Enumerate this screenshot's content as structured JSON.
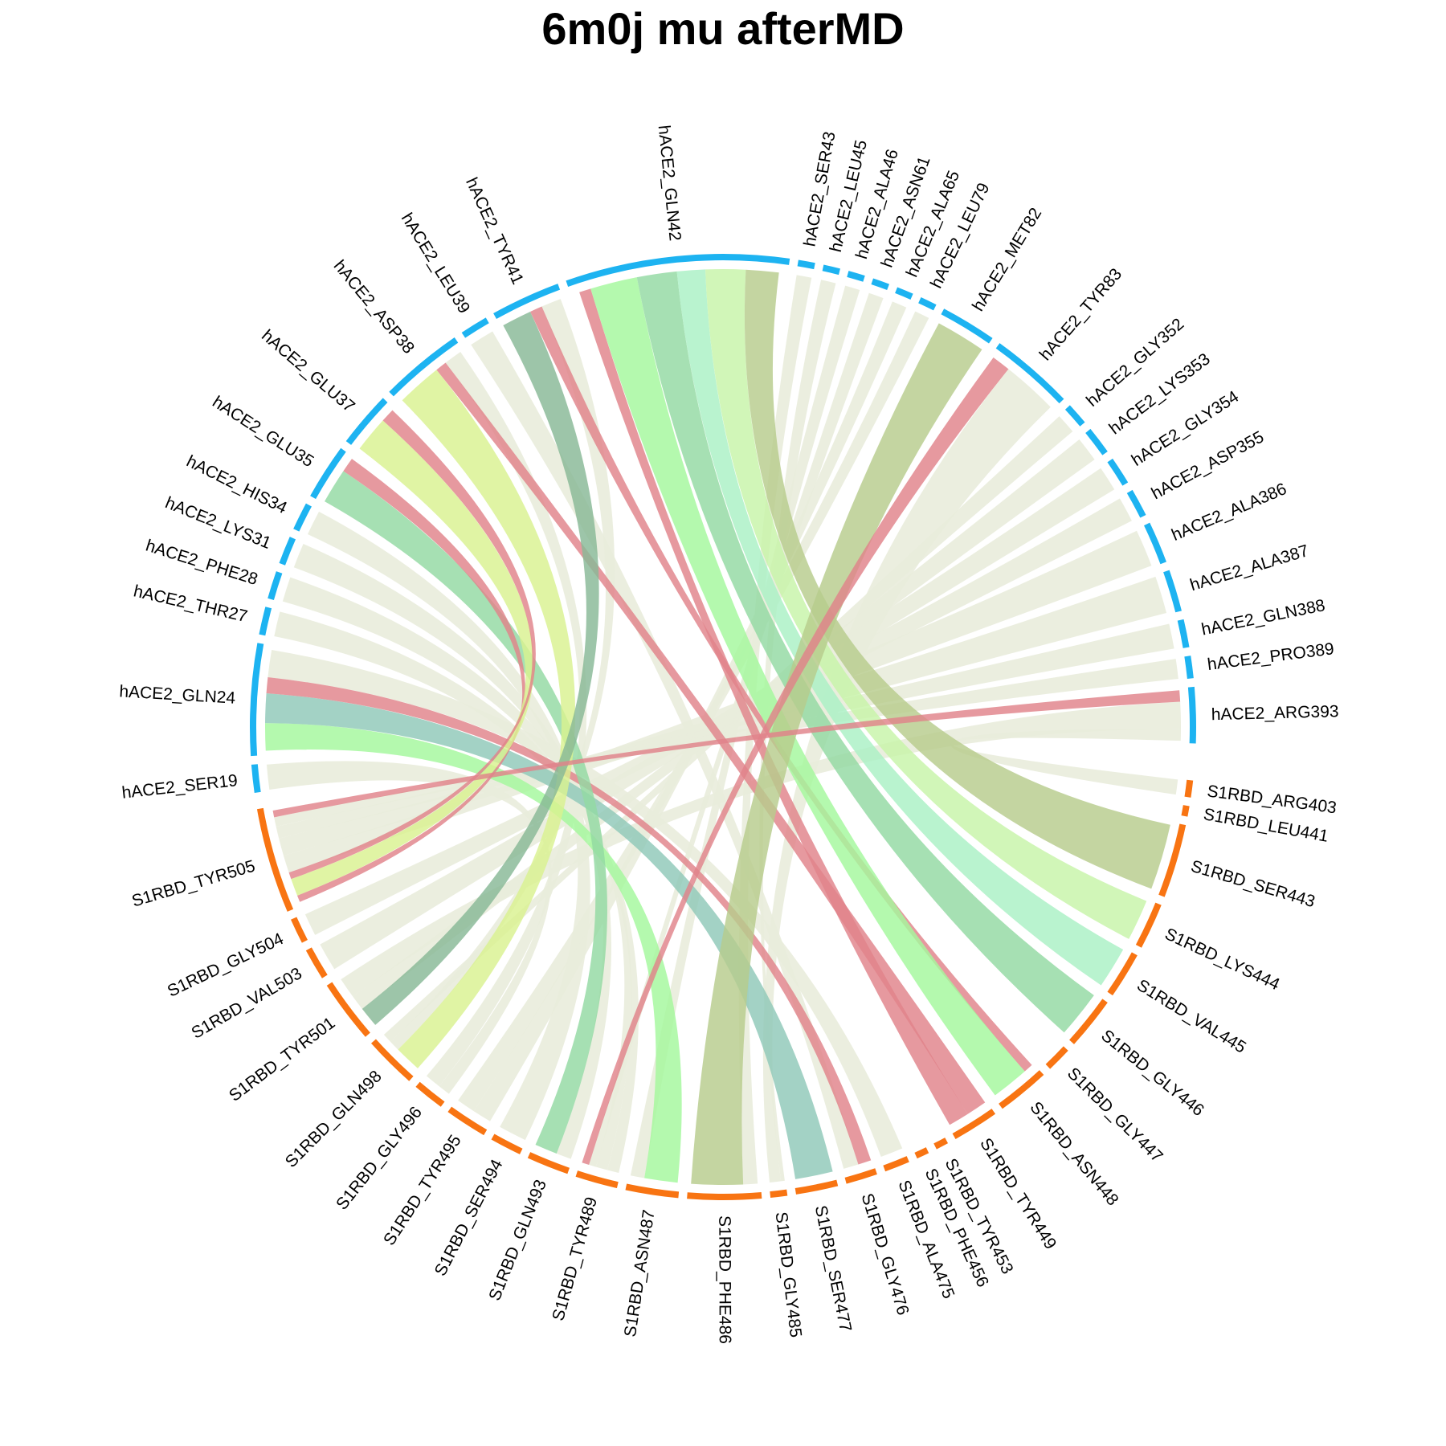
{
  "title": "6m0j mu afterMD",
  "group_colors": {
    "hACE2": "#1db3f1",
    "S1RBD": "#f87412"
  },
  "palette": {
    "red": "#e0838a",
    "lime": "#d9f290",
    "mint": "#a9f0c4",
    "green": "#a4f89c",
    "olive": "#b7cc8c",
    "teal": "#8fc8b8",
    "sage": "#87b896",
    "jade": "#93d9a2",
    "leaf": "#c7f4a8",
    "pale": "#e9ecdc"
  },
  "sectors": {
    "hACE2": [
      {
        "name": "hACE2_SER19",
        "weight": 1
      },
      {
        "name": "hACE2_GLN24",
        "weight": 4
      },
      {
        "name": "hACE2_THR27",
        "weight": 1
      },
      {
        "name": "hACE2_PHE28",
        "weight": 1
      },
      {
        "name": "hACE2_LYS31",
        "weight": 1
      },
      {
        "name": "hACE2_HIS34",
        "weight": 1
      },
      {
        "name": "hACE2_GLU35",
        "weight": 2
      },
      {
        "name": "hACE2_GLU37",
        "weight": 2
      },
      {
        "name": "hACE2_ASP38",
        "weight": 3
      },
      {
        "name": "hACE2_LEU39",
        "weight": 1
      },
      {
        "name": "hACE2_TYR41",
        "weight": 2.5
      },
      {
        "name": "hACE2_GLN42",
        "weight": 8
      },
      {
        "name": "hACE2_SER43",
        "weight": 0.6
      },
      {
        "name": "hACE2_LEU45",
        "weight": 0.6
      },
      {
        "name": "hACE2_ALA46",
        "weight": 0.6
      },
      {
        "name": "hACE2_ASN61",
        "weight": 0.6
      },
      {
        "name": "hACE2_ALA65",
        "weight": 0.6
      },
      {
        "name": "hACE2_LEU79",
        "weight": 0.6
      },
      {
        "name": "hACE2_MET82",
        "weight": 2
      },
      {
        "name": "hACE2_TYR83",
        "weight": 3
      },
      {
        "name": "hACE2_GLY352",
        "weight": 0.8
      },
      {
        "name": "hACE2_LYS353",
        "weight": 1
      },
      {
        "name": "hACE2_GLY354",
        "weight": 1
      },
      {
        "name": "hACE2_ASP355",
        "weight": 1
      },
      {
        "name": "hACE2_ALA386",
        "weight": 1.5
      },
      {
        "name": "hACE2_ALA387",
        "weight": 1.5
      },
      {
        "name": "hACE2_GLN388",
        "weight": 1
      },
      {
        "name": "hACE2_PRO389",
        "weight": 0.8
      },
      {
        "name": "hACE2_ARG393",
        "weight": 2
      }
    ],
    "S1RBD": [
      {
        "name": "S1RBD_ARG403",
        "weight": 0.8
      },
      {
        "name": "S1RBD_LEU441",
        "weight": 0.5
      },
      {
        "name": "S1RBD_SER443",
        "weight": 3.5
      },
      {
        "name": "S1RBD_LYS444",
        "weight": 2.2
      },
      {
        "name": "S1RBD_VAL445",
        "weight": 2.2
      },
      {
        "name": "S1RBD_GLY446",
        "weight": 2.5
      },
      {
        "name": "S1RBD_GLY447",
        "weight": 1.2
      },
      {
        "name": "S1RBD_ASN448",
        "weight": 2.5
      },
      {
        "name": "S1RBD_TYR449",
        "weight": 2.2
      },
      {
        "name": "S1RBD_TYR453",
        "weight": 0.6
      },
      {
        "name": "S1RBD_PHE456",
        "weight": 0.6
      },
      {
        "name": "S1RBD_ALA475",
        "weight": 1.2
      },
      {
        "name": "S1RBD_GLY476",
        "weight": 1.5
      },
      {
        "name": "S1RBD_SER477",
        "weight": 2
      },
      {
        "name": "S1RBD_GLY485",
        "weight": 0.8
      },
      {
        "name": "S1RBD_PHE486",
        "weight": 3.5
      },
      {
        "name": "S1RBD_ASN487",
        "weight": 2.5
      },
      {
        "name": "S1RBD_TYR489",
        "weight": 2
      },
      {
        "name": "S1RBD_GLN493",
        "weight": 2
      },
      {
        "name": "S1RBD_SER494",
        "weight": 1.5
      },
      {
        "name": "S1RBD_TYR495",
        "weight": 2
      },
      {
        "name": "S1RBD_GLY496",
        "weight": 1.5
      },
      {
        "name": "S1RBD_GLN498",
        "weight": 2.5
      },
      {
        "name": "S1RBD_TYR501",
        "weight": 3
      },
      {
        "name": "S1RBD_VAL503",
        "weight": 1.5
      },
      {
        "name": "S1RBD_GLY504",
        "weight": 1.2
      },
      {
        "name": "S1RBD_TYR505",
        "weight": 5
      }
    ]
  },
  "links": [
    {
      "from": "hACE2_SER19",
      "to": "S1RBD_GLY496",
      "weight": 0.6,
      "color": "pale"
    },
    {
      "from": "hACE2_GLN24",
      "to": "S1RBD_ASN487",
      "weight": 1.2,
      "color": "green"
    },
    {
      "from": "hACE2_GLN24",
      "to": "S1RBD_SER477",
      "weight": 1.3,
      "color": "teal"
    },
    {
      "from": "hACE2_GLN24",
      "to": "S1RBD_GLY476",
      "weight": 0.7,
      "color": "red"
    },
    {
      "from": "hACE2_GLN24",
      "to": "S1RBD_ALA475",
      "weight": 1.2,
      "color": "pale"
    },
    {
      "from": "hACE2_THR27",
      "to": "S1RBD_TYR489",
      "weight": 0.8,
      "color": "pale"
    },
    {
      "from": "hACE2_PHE28",
      "to": "S1RBD_TYR489",
      "weight": 0.8,
      "color": "pale"
    },
    {
      "from": "hACE2_LYS31",
      "to": "S1RBD_GLN493",
      "weight": 0.8,
      "color": "pale"
    },
    {
      "from": "hACE2_HIS34",
      "to": "S1RBD_SER494",
      "weight": 0.8,
      "color": "pale"
    },
    {
      "from": "hACE2_GLU35",
      "to": "S1RBD_GLN493",
      "weight": 1.2,
      "color": "jade"
    },
    {
      "from": "hACE2_GLU35",
      "to": "S1RBD_TYR505",
      "weight": 0.5,
      "color": "red"
    },
    {
      "from": "hACE2_GLU37",
      "to": "S1RBD_TYR505",
      "weight": 1.3,
      "color": "lime"
    },
    {
      "from": "hACE2_GLU37",
      "to": "S1RBD_TYR505",
      "weight": 0.5,
      "color": "red"
    },
    {
      "from": "hACE2_ASP38",
      "to": "S1RBD_GLN498",
      "weight": 2.0,
      "color": "lime"
    },
    {
      "from": "hACE2_ASP38",
      "to": "S1RBD_TYR449",
      "weight": 0.5,
      "color": "red"
    },
    {
      "from": "hACE2_ASP38",
      "to": "S1RBD_GLY496",
      "weight": 0.8,
      "color": "pale"
    },
    {
      "from": "hACE2_LEU39",
      "to": "S1RBD_GLY476",
      "weight": 0.8,
      "color": "pale"
    },
    {
      "from": "hACE2_TYR41",
      "to": "S1RBD_TYR501",
      "weight": 1.2,
      "color": "sage"
    },
    {
      "from": "hACE2_TYR41",
      "to": "S1RBD_ASN448",
      "weight": 0.5,
      "color": "red"
    },
    {
      "from": "hACE2_TYR41",
      "to": "S1RBD_GLN498",
      "weight": 0.8,
      "color": "pale"
    },
    {
      "from": "hACE2_GLN42",
      "to": "S1RBD_TYR449",
      "weight": 0.5,
      "color": "red"
    },
    {
      "from": "hACE2_GLN42",
      "to": "S1RBD_ASN448",
      "weight": 2.0,
      "color": "green"
    },
    {
      "from": "hACE2_GLN42",
      "to": "S1RBD_GLY446",
      "weight": 1.7,
      "color": "jade"
    },
    {
      "from": "hACE2_GLN42",
      "to": "S1RBD_VAL445",
      "weight": 1.2,
      "color": "mint"
    },
    {
      "from": "hACE2_GLN42",
      "to": "S1RBD_LYS444",
      "weight": 1.7,
      "color": "leaf"
    },
    {
      "from": "hACE2_GLN42",
      "to": "S1RBD_SER443",
      "weight": 1.4,
      "color": "olive"
    },
    {
      "from": "hACE2_SER43",
      "to": "S1RBD_PHE486",
      "weight": 0.5,
      "color": "pale"
    },
    {
      "from": "hACE2_LEU45",
      "to": "S1RBD_GLY485",
      "weight": 0.5,
      "color": "pale"
    },
    {
      "from": "hACE2_ALA46",
      "to": "S1RBD_ASN487",
      "weight": 0.5,
      "color": "pale"
    },
    {
      "from": "hACE2_ASN61",
      "to": "S1RBD_TYR489",
      "weight": 0.5,
      "color": "pale"
    },
    {
      "from": "hACE2_ALA65",
      "to": "S1RBD_TYR495",
      "weight": 0.5,
      "color": "pale"
    },
    {
      "from": "hACE2_LEU79",
      "to": "S1RBD_TYR495",
      "weight": 0.5,
      "color": "pale"
    },
    {
      "from": "hACE2_MET82",
      "to": "S1RBD_PHE486",
      "weight": 1.8,
      "color": "olive"
    },
    {
      "from": "hACE2_TYR83",
      "to": "S1RBD_TYR489",
      "weight": 0.5,
      "color": "red"
    },
    {
      "from": "hACE2_TYR83",
      "to": "S1RBD_GLY485",
      "weight": 1.5,
      "color": "pale"
    },
    {
      "from": "hACE2_GLY352",
      "to": "S1RBD_GLN498",
      "weight": 0.7,
      "color": "pale"
    },
    {
      "from": "hACE2_LYS353",
      "to": "S1RBD_TYR501",
      "weight": 0.9,
      "color": "pale"
    },
    {
      "from": "hACE2_GLY354",
      "to": "S1RBD_VAL503",
      "weight": 0.9,
      "color": "pale"
    },
    {
      "from": "hACE2_ASP355",
      "to": "S1RBD_GLY504",
      "weight": 0.9,
      "color": "pale"
    },
    {
      "from": "hACE2_ALA386",
      "to": "S1RBD_TYR505",
      "weight": 1.3,
      "color": "pale"
    },
    {
      "from": "hACE2_ALA387",
      "to": "S1RBD_TYR505",
      "weight": 1.3,
      "color": "pale"
    },
    {
      "from": "hACE2_GLN388",
      "to": "S1RBD_TYR505",
      "weight": 0.9,
      "color": "pale"
    },
    {
      "from": "hACE2_PRO389",
      "to": "S1RBD_TYR505",
      "weight": 0.7,
      "color": "pale"
    },
    {
      "from": "hACE2_ARG393",
      "to": "S1RBD_TYR505",
      "weight": 0.5,
      "color": "red"
    },
    {
      "from": "hACE2_ARG393",
      "to": "S1RBD_TYR501",
      "weight": 1.2,
      "color": "pale"
    },
    {
      "from": "hACE2_ARG393",
      "to": "S1RBD_ARG403",
      "weight": 0.5,
      "color": "pale"
    }
  ]
}
